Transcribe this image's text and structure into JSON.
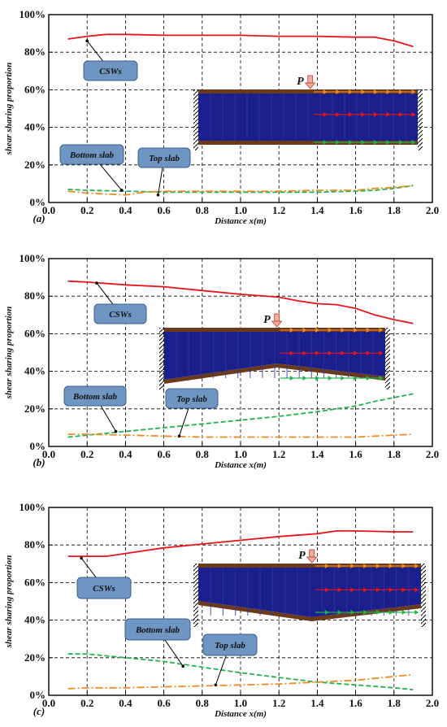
{
  "colors": {
    "csw": "#e8141b",
    "bottom_slab": "#22b24c",
    "top_slab": "#f08a24",
    "callout_fill": "#6f95c2",
    "callout_stroke": "#3b5f8e",
    "beam_web": "#1a1f8c",
    "beam_flange": "#6b3a1a",
    "grid": "#000000"
  },
  "chart_data": [
    {
      "type": "line",
      "panel": "(a)",
      "xlabel": "Distance x(m)",
      "ylabel": "shear sharing proportion",
      "xlim": [
        0.0,
        2.0
      ],
      "ylim": [
        0,
        100
      ],
      "x_ticks": [
        "0.0",
        "0.2",
        "0.4",
        "0.6",
        "0.8",
        "1.0",
        "1.2",
        "1.4",
        "1.6",
        "1.8",
        "2.0"
      ],
      "y_ticks": [
        "0%",
        "20%",
        "40%",
        "60%",
        "80%",
        "100%"
      ],
      "grid": true,
      "series": [
        {
          "name": "CSWs",
          "style": "solid",
          "x": [
            0.1,
            0.2,
            0.3,
            0.4,
            0.6,
            0.8,
            1.0,
            1.2,
            1.4,
            1.6,
            1.7,
            1.8,
            1.9
          ],
          "values": [
            87,
            88.5,
            89.5,
            89.5,
            89,
            89,
            89,
            88.5,
            88.5,
            88,
            88,
            86,
            83
          ]
        },
        {
          "name": "Bottom slab",
          "style": "dashed",
          "x": [
            0.1,
            0.2,
            0.4,
            0.6,
            0.8,
            1.0,
            1.2,
            1.4,
            1.6,
            1.7,
            1.8,
            1.9
          ],
          "values": [
            7,
            6.5,
            6,
            5.5,
            5.5,
            5.5,
            5.5,
            5.5,
            6,
            6.5,
            7.5,
            9
          ]
        },
        {
          "name": "Top slab",
          "style": "dashdot",
          "x": [
            0.1,
            0.2,
            0.3,
            0.4,
            0.5,
            0.6,
            0.8,
            1.0,
            1.2,
            1.4,
            1.6,
            1.7,
            1.8,
            1.9
          ],
          "values": [
            6,
            5,
            4.5,
            4,
            5.5,
            6,
            6,
            6,
            6,
            6.5,
            6.5,
            7.5,
            8,
            9
          ]
        }
      ],
      "callouts": [
        {
          "label": "CSWs",
          "x": 0.2,
          "y": 86
        },
        {
          "label": "Bottom slab",
          "x": 0.38,
          "y": 6.5
        },
        {
          "label": "Top slab",
          "x": 0.57,
          "y": 4
        }
      ],
      "load_label": "P"
    },
    {
      "type": "line",
      "panel": "(b)",
      "xlabel": "Distance x(m)",
      "ylabel": "shear sharing proportion",
      "xlim": [
        0.0,
        2.0
      ],
      "ylim": [
        0,
        100
      ],
      "x_ticks": [
        "0.0",
        "0.2",
        "0.4",
        "0.6",
        "0.8",
        "1.0",
        "1.2",
        "1.4",
        "1.6",
        "1.8",
        "2.0"
      ],
      "y_ticks": [
        "0%",
        "20%",
        "40%",
        "60%",
        "80%",
        "100%"
      ],
      "grid": true,
      "series": [
        {
          "name": "CSWs",
          "style": "solid",
          "x": [
            0.1,
            0.2,
            0.4,
            0.6,
            0.8,
            1.0,
            1.2,
            1.3,
            1.4,
            1.5,
            1.6,
            1.7,
            1.8,
            1.9
          ],
          "values": [
            88,
            87.5,
            86,
            85,
            83,
            81,
            79.5,
            77.5,
            76,
            75.5,
            73.5,
            70,
            67.5,
            65.5
          ]
        },
        {
          "name": "Bottom slab",
          "style": "dashed",
          "x": [
            0.1,
            0.2,
            0.4,
            0.6,
            0.8,
            1.0,
            1.2,
            1.4,
            1.5,
            1.6,
            1.7,
            1.8,
            1.9
          ],
          "values": [
            5,
            6,
            8,
            10,
            12,
            14,
            16,
            18.5,
            20,
            21.5,
            24,
            26,
            28
          ]
        },
        {
          "name": "Top slab",
          "style": "dashdot",
          "x": [
            0.1,
            0.2,
            0.4,
            0.6,
            0.8,
            1.0,
            1.2,
            1.4,
            1.6,
            1.7,
            1.8,
            1.9
          ],
          "values": [
            6.5,
            6.5,
            6,
            5.5,
            5,
            5,
            5,
            5,
            5,
            5.5,
            6,
            6.5
          ]
        }
      ],
      "callouts": [
        {
          "label": "CSWs",
          "x": 0.25,
          "y": 87
        },
        {
          "label": "Bottom slab",
          "x": 0.35,
          "y": 8
        },
        {
          "label": "Top slab",
          "x": 0.68,
          "y": 5.5
        }
      ],
      "load_label": "P"
    },
    {
      "type": "line",
      "panel": "(c)",
      "xlabel": "Distance x(m)",
      "ylabel": "shear sharing proportion",
      "xlim": [
        0.0,
        2.0
      ],
      "ylim": [
        0,
        100
      ],
      "x_ticks": [
        "0.0",
        "0.2",
        "0.4",
        "0.6",
        "0.8",
        "1.0",
        "1.2",
        "1.4",
        "1.6",
        "1.8",
        "2.0"
      ],
      "y_ticks": [
        "0%",
        "20%",
        "40%",
        "60%",
        "80%",
        "100%"
      ],
      "grid": true,
      "series": [
        {
          "name": "CSWs",
          "style": "solid",
          "x": [
            0.1,
            0.2,
            0.3,
            0.4,
            0.6,
            0.8,
            1.0,
            1.2,
            1.4,
            1.5,
            1.6,
            1.8,
            1.9
          ],
          "values": [
            74,
            74,
            74,
            75.5,
            78.5,
            80.5,
            82.5,
            84.5,
            86,
            87.5,
            87.5,
            87,
            87
          ]
        },
        {
          "name": "Bottom slab",
          "style": "dashed",
          "x": [
            0.1,
            0.2,
            0.4,
            0.6,
            0.8,
            1.0,
            1.2,
            1.4,
            1.6,
            1.8,
            1.9
          ],
          "values": [
            22,
            22,
            20,
            18,
            15,
            12,
            9.5,
            7,
            5.5,
            4,
            3
          ]
        },
        {
          "name": "Top slab",
          "style": "dashdot",
          "x": [
            0.1,
            0.2,
            0.4,
            0.6,
            0.8,
            1.0,
            1.2,
            1.4,
            1.6,
            1.7,
            1.8,
            1.9
          ],
          "values": [
            3.5,
            4,
            4,
            4.5,
            5,
            5.5,
            6,
            7,
            8,
            9,
            10,
            11
          ]
        }
      ],
      "callouts": [
        {
          "label": "CSWs",
          "x": 0.17,
          "y": 73
        },
        {
          "label": "Bottom slab",
          "x": 0.7,
          "y": 15.5
        },
        {
          "label": "Top slab",
          "x": 0.87,
          "y": 5.5
        }
      ],
      "load_label": "P"
    }
  ]
}
